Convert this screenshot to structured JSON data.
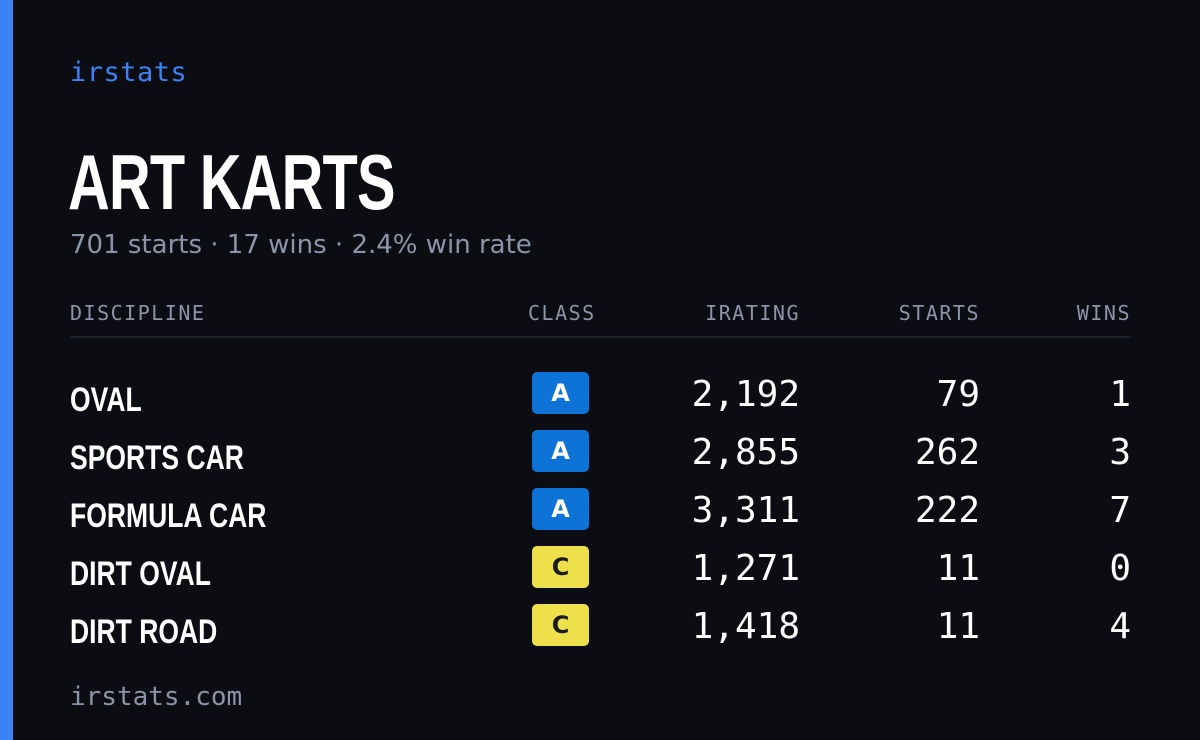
{
  "colors": {
    "background": "#0b0d13",
    "accent": "#3b82f6",
    "muted": "#8b94a8",
    "text": "#ffffff",
    "class_a_bg": "#0e73d6",
    "class_a_text": "#ffffff",
    "class_c_bg": "#ede04a",
    "class_c_text": "#1a1a1a"
  },
  "brand": "irstats",
  "driver": {
    "name": "ART KARTS",
    "summary": "701 starts · 17 wins · 2.4% win rate"
  },
  "table": {
    "headers": {
      "discipline": "DISCIPLINE",
      "class": "CLASS",
      "irating": "IRATING",
      "starts": "STARTS",
      "wins": "WINS"
    },
    "rows": [
      {
        "discipline": "OVAL",
        "class": "A",
        "irating": "2,192",
        "starts": "79",
        "wins": "1"
      },
      {
        "discipline": "SPORTS CAR",
        "class": "A",
        "irating": "2,855",
        "starts": "262",
        "wins": "3"
      },
      {
        "discipline": "FORMULA CAR",
        "class": "A",
        "irating": "3,311",
        "starts": "222",
        "wins": "7"
      },
      {
        "discipline": "DIRT OVAL",
        "class": "C",
        "irating": "1,271",
        "starts": "11",
        "wins": "0"
      },
      {
        "discipline": "DIRT ROAD",
        "class": "C",
        "irating": "1,418",
        "starts": "11",
        "wins": "4"
      }
    ]
  },
  "footer": "irstats.com"
}
